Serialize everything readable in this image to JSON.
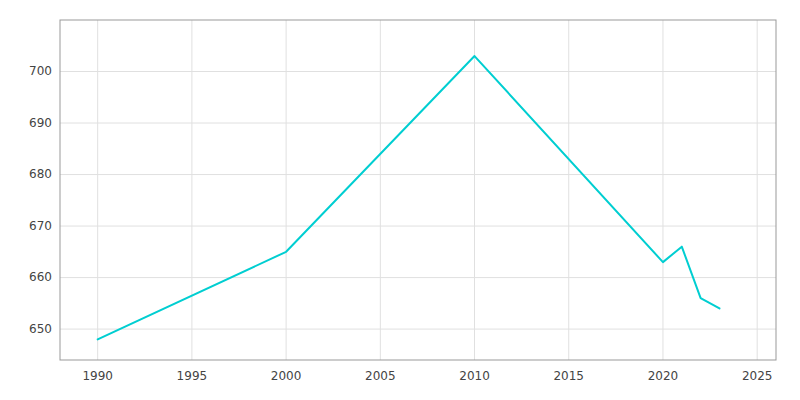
{
  "chart_data": {
    "type": "line",
    "x": [
      1990,
      2000,
      2010,
      2020,
      2021,
      2022,
      2023
    ],
    "values": [
      648,
      665,
      703,
      663,
      666,
      656,
      654
    ],
    "color": "#00CED1",
    "xlim": [
      1988,
      2026
    ],
    "ylim": [
      644,
      710
    ],
    "xticks": [
      1990,
      1995,
      2000,
      2005,
      2010,
      2015,
      2020,
      2025
    ],
    "yticks": [
      650,
      660,
      670,
      680,
      690,
      700
    ],
    "grid": true
  }
}
